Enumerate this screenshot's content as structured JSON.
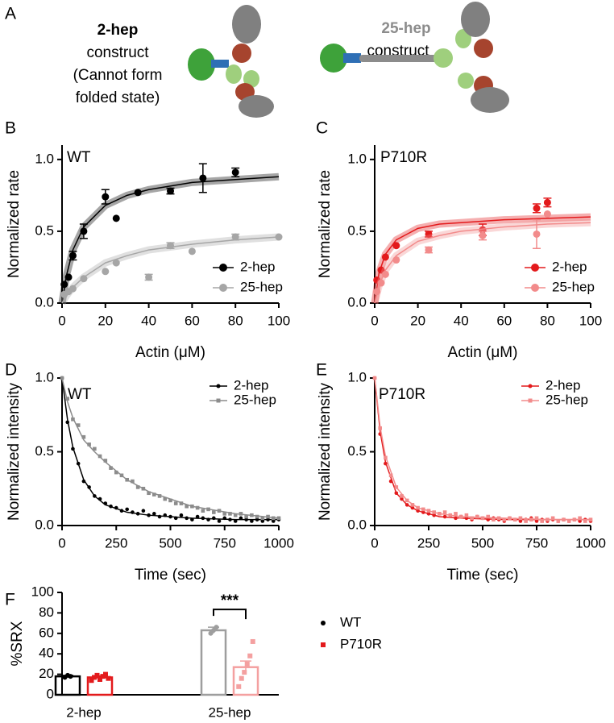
{
  "panel_a": {
    "panel": "A",
    "construct_2hep": {
      "name": "2-hep",
      "lines": [
        "construct",
        "(Cannot form",
        "folded state)"
      ]
    },
    "construct_25hep": {
      "name": "25-hep",
      "lines": [
        "construct"
      ]
    }
  },
  "chart_data": [
    {
      "type": "scatter",
      "panel": "B",
      "annotation": "WT",
      "xlabel": "Actin (μM)",
      "ylabel": "Normalized rate",
      "xlim": [
        0,
        100
      ],
      "xticks": [
        0,
        20,
        40,
        60,
        80,
        100
      ],
      "ylim": [
        0,
        1.1
      ],
      "yticks": [
        {
          "value": 0,
          "label": "0.0"
        },
        0.5,
        {
          "value": 1,
          "label": "1.0"
        }
      ],
      "legend": "lower right",
      "fit_band": true,
      "curve_x": [
        0,
        2,
        5,
        10,
        20,
        30,
        40,
        60,
        80,
        100
      ],
      "series": [
        {
          "name": "2-hep",
          "color": "#000000",
          "marker": "circle",
          "x": [
            1,
            3,
            5,
            10,
            20,
            25,
            35,
            50,
            65,
            80
          ],
          "values": [
            0.13,
            0.18,
            0.33,
            0.5,
            0.74,
            0.59,
            0.77,
            0.78,
            0.87,
            0.91
          ],
          "errors": [
            null,
            null,
            0.03,
            0.05,
            0.05,
            null,
            null,
            0.02,
            0.1,
            0.03
          ],
          "curve": [
            0,
            0.19,
            0.37,
            0.53,
            0.68,
            0.75,
            0.79,
            0.84,
            0.86,
            0.88
          ]
        },
        {
          "name": "25-hep",
          "color": "#a6a6a6",
          "marker": "circle",
          "x": [
            1,
            3,
            5,
            10,
            20,
            25,
            40,
            50,
            60,
            80,
            100
          ],
          "values": [
            0.06,
            0.08,
            0.1,
            0.17,
            0.22,
            0.28,
            0.18,
            0.4,
            0.36,
            0.46,
            0.46
          ],
          "errors": [
            null,
            null,
            null,
            null,
            null,
            null,
            0.02,
            0.02,
            null,
            0.02,
            null
          ],
          "curve": [
            0,
            0.05,
            0.11,
            0.18,
            0.28,
            0.33,
            0.37,
            0.41,
            0.44,
            0.46
          ]
        }
      ]
    },
    {
      "type": "scatter",
      "panel": "C",
      "annotation": "P710R",
      "xlabel": "Actin (μM)",
      "ylabel": "Normalized rate",
      "xlim": [
        0,
        100
      ],
      "xticks": [
        0,
        20,
        40,
        60,
        80,
        100
      ],
      "ylim": [
        0,
        1.1
      ],
      "yticks": [
        {
          "value": 0,
          "label": "0.0"
        },
        0.5,
        {
          "value": 1,
          "label": "1.0"
        }
      ],
      "legend": "lower right",
      "fit_band": true,
      "curve_x": [
        0,
        2,
        5,
        10,
        20,
        30,
        40,
        60,
        80,
        100
      ],
      "series": [
        {
          "name": "2-hep",
          "color": "#e31a1c",
          "marker": "circle",
          "x": [
            1,
            3,
            5,
            10,
            25,
            50,
            75,
            80
          ],
          "values": [
            0.16,
            0.23,
            0.32,
            0.4,
            0.48,
            0.51,
            0.66,
            0.7
          ],
          "errors": [
            null,
            null,
            null,
            null,
            0.02,
            0.04,
            0.03,
            0.03
          ],
          "curve": [
            0,
            0.21,
            0.34,
            0.44,
            0.52,
            0.55,
            0.56,
            0.58,
            0.59,
            0.6
          ]
        },
        {
          "name": "25-hep",
          "color": "#f28b8b",
          "marker": "circle",
          "x": [
            1,
            3,
            5,
            10,
            25,
            50,
            75,
            80
          ],
          "values": [
            0.08,
            0.14,
            0.2,
            0.3,
            0.37,
            0.47,
            0.48,
            0.62
          ],
          "errors": [
            null,
            null,
            null,
            null,
            0.02,
            0.03,
            0.1,
            null
          ],
          "curve": [
            0,
            0.12,
            0.23,
            0.33,
            0.43,
            0.47,
            0.5,
            0.53,
            0.55,
            0.56
          ]
        }
      ]
    },
    {
      "type": "scatter",
      "panel": "D",
      "annotation": "WT",
      "xlabel": "Time (sec)",
      "ylabel": "Normalized intensity",
      "xlim": [
        0,
        1000
      ],
      "xticks": [
        0,
        250,
        500,
        750,
        1000
      ],
      "ylim": [
        0,
        1
      ],
      "yticks": [
        {
          "value": 0,
          "label": "0.0"
        },
        0.5,
        {
          "value": 1,
          "label": "1.0"
        }
      ],
      "legend": "upper right",
      "fit_band": false,
      "x": [
        0,
        25,
        50,
        75,
        100,
        125,
        150,
        175,
        200,
        225,
        250,
        275,
        300,
        325,
        350,
        375,
        400,
        425,
        450,
        475,
        500,
        525,
        550,
        575,
        600,
        625,
        650,
        675,
        700,
        725,
        750,
        775,
        800,
        825,
        850,
        875,
        900,
        925,
        950,
        975,
        1000
      ],
      "curve_x": [
        0,
        25,
        50,
        100,
        150,
        200,
        300,
        400,
        600,
        800,
        1000
      ],
      "series": [
        {
          "name": "2-hep",
          "color": "#000000",
          "marker": "circle",
          "values": [
            1.0,
            0.7,
            0.52,
            0.42,
            0.3,
            0.26,
            0.2,
            0.18,
            0.15,
            0.13,
            0.12,
            0.1,
            0.11,
            0.09,
            0.08,
            0.1,
            0.07,
            0.08,
            0.06,
            0.07,
            0.06,
            0.05,
            0.07,
            0.05,
            0.04,
            0.06,
            0.05,
            0.04,
            0.05,
            0.03,
            0.05,
            0.04,
            0.03,
            0.05,
            0.04,
            0.03,
            0.04,
            0.03,
            0.04,
            0.03,
            0.04
          ],
          "curve": [
            1.0,
            0.72,
            0.53,
            0.31,
            0.2,
            0.14,
            0.09,
            0.07,
            0.05,
            0.04,
            0.04
          ]
        },
        {
          "name": "25-hep",
          "color": "#8c8c8c",
          "marker": "square",
          "values": [
            1.0,
            0.86,
            0.72,
            0.68,
            0.6,
            0.55,
            0.52,
            0.47,
            0.44,
            0.39,
            0.36,
            0.34,
            0.31,
            0.3,
            0.26,
            0.25,
            0.22,
            0.21,
            0.2,
            0.18,
            0.17,
            0.15,
            0.15,
            0.13,
            0.13,
            0.12,
            0.1,
            0.11,
            0.09,
            0.1,
            0.08,
            0.08,
            0.07,
            0.08,
            0.06,
            0.07,
            0.06,
            0.05,
            0.06,
            0.05,
            0.05
          ],
          "curve": [
            1.0,
            0.84,
            0.73,
            0.58,
            0.5,
            0.43,
            0.31,
            0.23,
            0.13,
            0.08,
            0.05
          ]
        }
      ]
    },
    {
      "type": "scatter",
      "panel": "E",
      "annotation": "P710R",
      "xlabel": "Time (sec)",
      "ylabel": "Normalized intensity",
      "xlim": [
        0,
        1000
      ],
      "xticks": [
        0,
        250,
        500,
        750,
        1000
      ],
      "ylim": [
        0,
        1
      ],
      "yticks": [
        {
          "value": 0,
          "label": "0.0"
        },
        0.5,
        {
          "value": 1,
          "label": "1.0"
        }
      ],
      "legend": "upper right",
      "fit_band": false,
      "x": [
        0,
        25,
        50,
        75,
        100,
        125,
        150,
        175,
        200,
        225,
        250,
        275,
        300,
        325,
        350,
        375,
        400,
        425,
        450,
        475,
        500,
        525,
        550,
        575,
        600,
        625,
        650,
        675,
        700,
        725,
        750,
        775,
        800,
        825,
        850,
        875,
        900,
        925,
        950,
        975,
        1000
      ],
      "curve_x": [
        0,
        25,
        50,
        100,
        150,
        200,
        300,
        400,
        600,
        800,
        1000
      ],
      "series": [
        {
          "name": "2-hep",
          "color": "#e31a1c",
          "marker": "circle",
          "values": [
            1.0,
            0.62,
            0.42,
            0.3,
            0.22,
            0.18,
            0.14,
            0.12,
            0.1,
            0.09,
            0.08,
            0.07,
            0.08,
            0.06,
            0.07,
            0.05,
            0.06,
            0.05,
            0.04,
            0.06,
            0.05,
            0.04,
            0.05,
            0.04,
            0.03,
            0.05,
            0.04,
            0.03,
            0.04,
            0.05,
            0.03,
            0.04,
            0.03,
            0.04,
            0.03,
            0.04,
            0.03,
            0.04,
            0.03,
            0.04,
            0.03
          ],
          "curve": [
            1.0,
            0.64,
            0.43,
            0.22,
            0.14,
            0.1,
            0.06,
            0.05,
            0.04,
            0.04,
            0.04
          ]
        },
        {
          "name": "25-hep",
          "color": "#f28b8b",
          "marker": "square",
          "values": [
            1.0,
            0.66,
            0.46,
            0.34,
            0.26,
            0.2,
            0.17,
            0.14,
            0.12,
            0.11,
            0.1,
            0.09,
            0.08,
            0.09,
            0.07,
            0.08,
            0.06,
            0.07,
            0.05,
            0.06,
            0.05,
            0.06,
            0.04,
            0.05,
            0.04,
            0.05,
            0.04,
            0.05,
            0.03,
            0.04,
            0.05,
            0.03,
            0.04,
            0.05,
            0.03,
            0.04,
            0.03,
            0.04,
            0.05,
            0.03,
            0.04
          ],
          "curve": [
            1.0,
            0.67,
            0.47,
            0.26,
            0.17,
            0.12,
            0.08,
            0.06,
            0.05,
            0.04,
            0.04
          ]
        }
      ]
    },
    {
      "type": "bar",
      "panel": "F",
      "ylabel": "%SRX",
      "annotation": "***",
      "categories": [
        "2-hep",
        "25-hep"
      ],
      "ylim": [
        0,
        100
      ],
      "yticks": [
        0,
        20,
        40,
        60,
        80,
        100
      ],
      "legend": "right",
      "series": [
        {
          "name": "WT",
          "color": "#000000",
          "marker": "circle",
          "bar_colors": [
            "#000000",
            "#9e9e9e"
          ],
          "values": [
            18,
            63
          ],
          "errors": [
            1,
            3
          ],
          "points": [
            [
              17,
              19,
              18
            ],
            [
              60,
              63,
              66
            ]
          ]
        },
        {
          "name": "P710R",
          "color": "#e31a1c",
          "marker": "square",
          "bar_colors": [
            "#e31a1c",
            "#f4a0a0"
          ],
          "values": [
            17,
            27
          ],
          "errors": [
            1.5,
            6
          ],
          "points": [
            [
              14,
              17,
              19,
              15,
              18,
              20,
              16
            ],
            [
              8,
              16,
              22,
              30,
              38,
              52
            ]
          ]
        }
      ]
    }
  ]
}
